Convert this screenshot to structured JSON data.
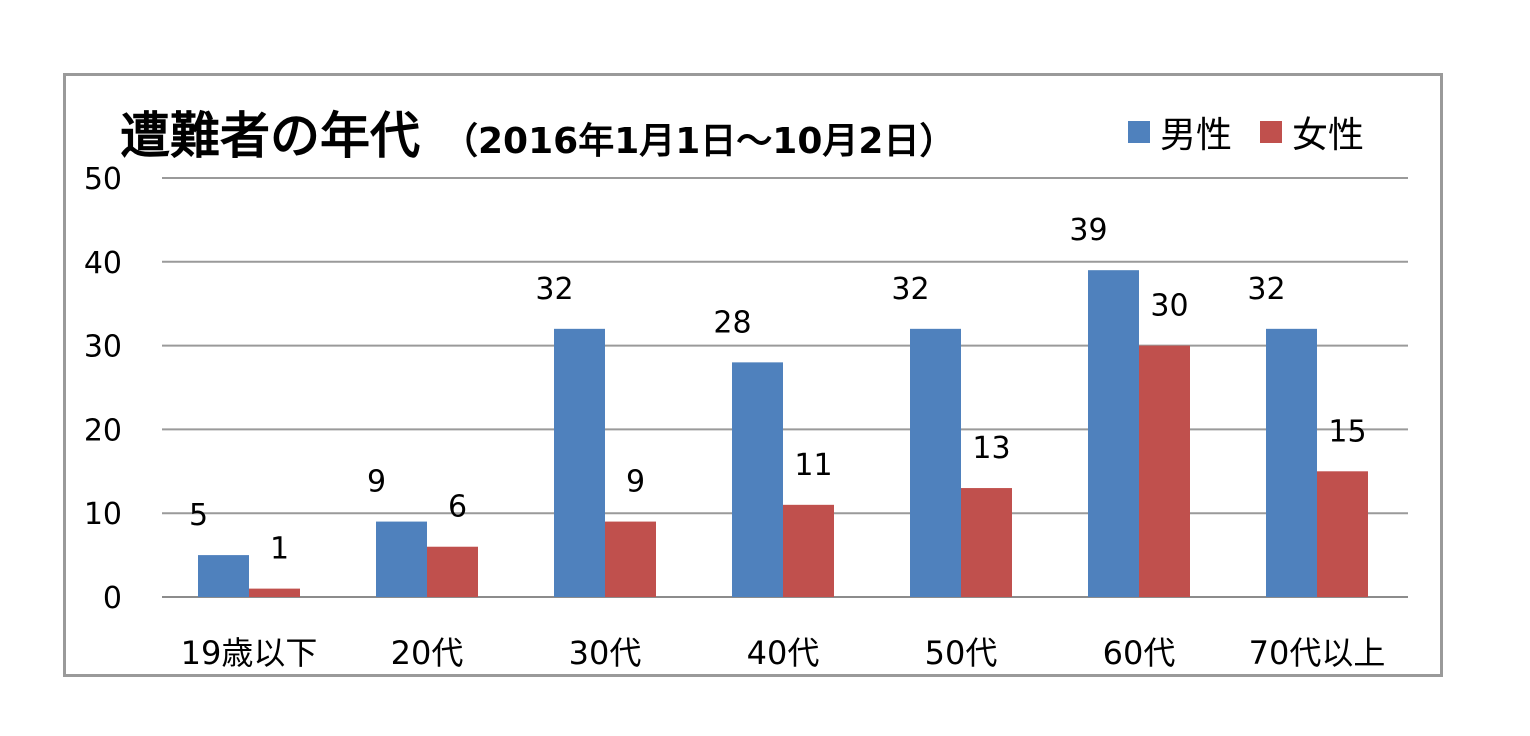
{
  "chart_data": {
    "type": "bar",
    "title": "遭難者の年代",
    "subtitle": "（2016年1月1日～10月2日）",
    "categories": [
      "19歳以下",
      "20代",
      "30代",
      "40代",
      "50代",
      "60代",
      "70代以上"
    ],
    "series": [
      {
        "name": "男性",
        "color": "#4f81bd",
        "values": [
          5,
          9,
          32,
          28,
          32,
          39,
          32
        ]
      },
      {
        "name": "女性",
        "color": "#c0504d",
        "values": [
          1,
          6,
          9,
          11,
          13,
          30,
          15
        ]
      }
    ],
    "ylim": [
      0,
      50
    ],
    "yticks": [
      0,
      10,
      20,
      30,
      40,
      50
    ],
    "grid": true,
    "legend_position": "top-right",
    "data_labels": true
  }
}
